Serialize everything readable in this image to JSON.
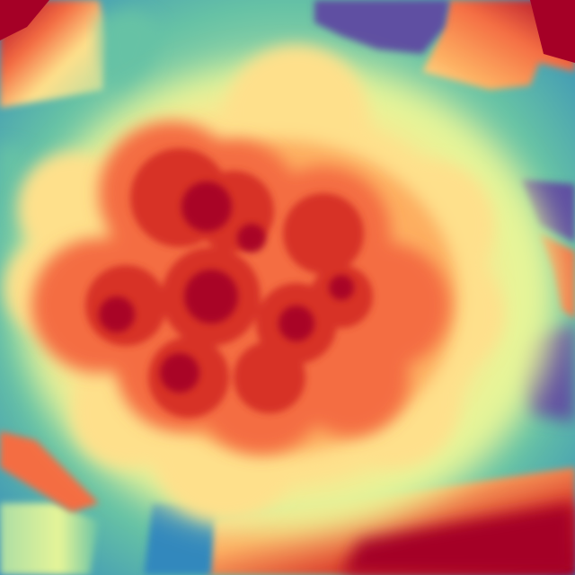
{
  "image": {
    "description_kind": "depth-map visualization",
    "colormap": "spectral",
    "palette": {
      "deep_red": "#a50026",
      "red": "#d73027",
      "orange": "#f46d43",
      "light_orange": "#fdae61",
      "cream": "#fee08b",
      "pale_yellow": "#ffffbf",
      "light_green": "#e6f598",
      "green": "#abdda4",
      "teal": "#66c2a5",
      "blue": "#3288bd",
      "purple": "#5e4fa2"
    }
  }
}
